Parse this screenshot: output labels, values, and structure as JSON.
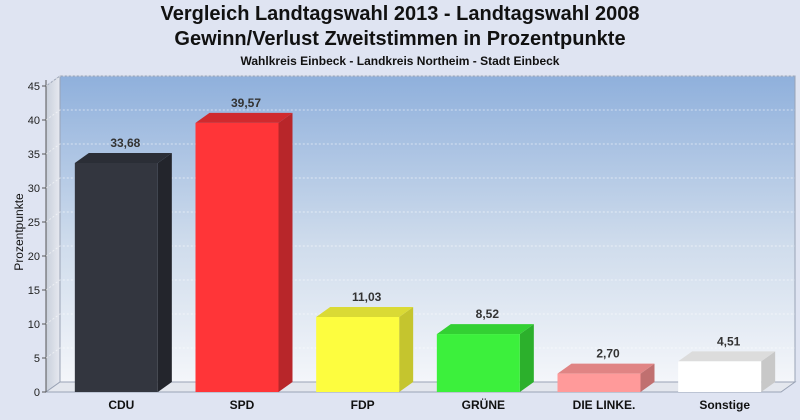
{
  "header": {
    "title_line1": "Vergleich Landtagswahl 2013 - Landtagswahl 2008",
    "title_line2": "Gewinn/Verlust Zweitstimmen in Prozentpunkte",
    "subtitle": "Wahlkreis Einbeck - Landkreis Northeim - Stadt Einbeck"
  },
  "chart_data": {
    "type": "bar",
    "title": "Vergleich Landtagswahl 2013 - Landtagswahl 2008 / Gewinn/Verlust Zweitstimmen in Prozentpunkte",
    "subtitle": "Wahlkreis Einbeck - Landkreis Northeim - Stadt Einbeck",
    "xlabel": "",
    "ylabel": "Prozentpunkte",
    "ylim": [
      0,
      45
    ],
    "yticks": [
      0,
      5,
      10,
      15,
      20,
      25,
      30,
      35,
      40,
      45
    ],
    "grid": true,
    "categories": [
      "CDU",
      "SPD",
      "FDP",
      "GRÜNE",
      "DIE LINKE.",
      "Sonstige"
    ],
    "values": [
      33.68,
      39.57,
      11.03,
      8.52,
      2.7,
      4.51
    ],
    "value_labels": [
      "33,68",
      "39,57",
      "11,03",
      "8,52",
      "2,70",
      "4,51"
    ],
    "colors": [
      "#33363f",
      "#ff3538",
      "#fdfd3f",
      "#3cf03c",
      "#ff9a9a",
      "#ffffff"
    ],
    "side_colors": [
      "#23252c",
      "#b8262a",
      "#c5c52e",
      "#2cb02c",
      "#c07070",
      "#c8c8c8"
    ],
    "top_colors": [
      "#2b2e36",
      "#d02a2e",
      "#dada35",
      "#33d033",
      "#e08484",
      "#dcdcdc"
    ]
  }
}
